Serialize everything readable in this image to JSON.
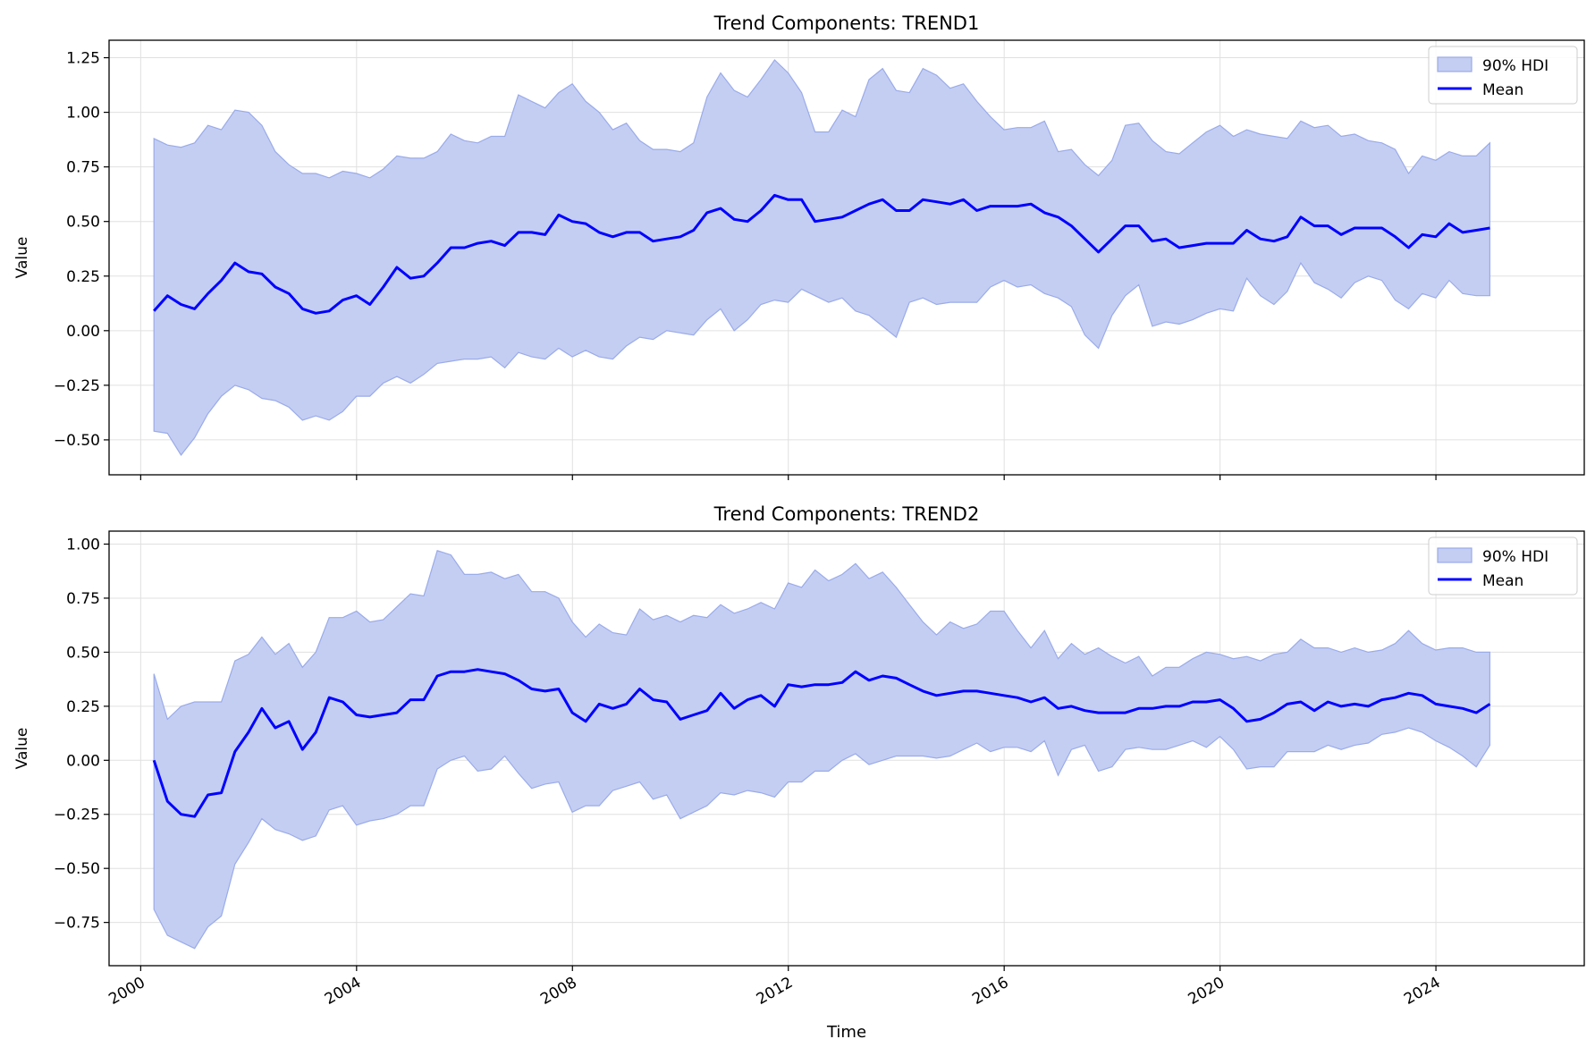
{
  "chart_data": [
    {
      "type": "area",
      "title": "Trend Components: TREND1",
      "xlabel": "",
      "ylabel": "Value",
      "xlim": [
        "1999-06-01",
        "2026-10-01"
      ],
      "ylim": [
        -0.66,
        1.33
      ],
      "x_ticks": [
        2000,
        2004,
        2008,
        2012,
        2016,
        2020,
        2024
      ],
      "y_ticks": [
        -0.5,
        -0.25,
        0.0,
        0.25,
        0.5,
        0.75,
        1.0,
        1.25
      ],
      "y_tick_labels": [
        "−0.50",
        "−0.25",
        "0.00",
        "0.25",
        "0.50",
        "0.75",
        "1.00",
        "1.25"
      ],
      "grid": true,
      "legend": {
        "position": "top-right",
        "items": [
          {
            "label": "90% HDI",
            "kind": "band"
          },
          {
            "label": "Mean",
            "kind": "line"
          }
        ]
      },
      "start_date": "2000-03-31",
      "frequency": "quarterly",
      "series": [
        {
          "name": "Mean",
          "values": [
            0.09,
            0.16,
            0.12,
            0.1,
            0.17,
            0.23,
            0.31,
            0.27,
            0.26,
            0.2,
            0.17,
            0.1,
            0.08,
            0.09,
            0.14,
            0.16,
            0.12,
            0.2,
            0.29,
            0.24,
            0.25,
            0.31,
            0.38,
            0.38,
            0.4,
            0.41,
            0.39,
            0.45,
            0.45,
            0.44,
            0.53,
            0.5,
            0.49,
            0.45,
            0.43,
            0.45,
            0.45,
            0.41,
            0.42,
            0.43,
            0.46,
            0.54,
            0.56,
            0.51,
            0.5,
            0.55,
            0.62,
            0.6,
            0.6,
            0.5,
            0.51,
            0.52,
            0.55,
            0.58,
            0.6,
            0.55,
            0.55,
            0.6,
            0.59,
            0.58,
            0.6,
            0.55,
            0.57,
            0.57,
            0.57,
            0.58,
            0.54,
            0.52,
            0.48,
            0.42,
            0.36,
            0.42,
            0.48,
            0.48,
            0.41,
            0.42,
            0.38,
            0.39,
            0.4,
            0.4,
            0.4,
            0.46,
            0.42,
            0.41,
            0.43,
            0.52,
            0.48,
            0.48,
            0.44,
            0.47,
            0.47,
            0.47,
            0.43,
            0.38,
            0.44,
            0.43,
            0.49,
            0.45,
            0.46,
            0.47
          ]
        },
        {
          "name": "90% HDI upper",
          "values": [
            0.88,
            0.85,
            0.84,
            0.86,
            0.94,
            0.92,
            1.01,
            1.0,
            0.94,
            0.82,
            0.76,
            0.72,
            0.72,
            0.7,
            0.73,
            0.72,
            0.7,
            0.74,
            0.8,
            0.79,
            0.79,
            0.82,
            0.9,
            0.87,
            0.86,
            0.89,
            0.89,
            1.08,
            1.05,
            1.02,
            1.09,
            1.13,
            1.05,
            1.0,
            0.92,
            0.95,
            0.87,
            0.83,
            0.83,
            0.82,
            0.86,
            1.07,
            1.18,
            1.1,
            1.07,
            1.15,
            1.24,
            1.18,
            1.09,
            0.91,
            0.91,
            1.01,
            0.98,
            1.15,
            1.2,
            1.1,
            1.09,
            1.2,
            1.17,
            1.11,
            1.13,
            1.05,
            0.98,
            0.92,
            0.93,
            0.93,
            0.96,
            0.82,
            0.83,
            0.76,
            0.71,
            0.78,
            0.94,
            0.95,
            0.87,
            0.82,
            0.81,
            0.86,
            0.91,
            0.94,
            0.89,
            0.92,
            0.9,
            0.89,
            0.88,
            0.96,
            0.93,
            0.94,
            0.89,
            0.9,
            0.87,
            0.86,
            0.83,
            0.72,
            0.8,
            0.78,
            0.82,
            0.8,
            0.8,
            0.86
          ]
        },
        {
          "name": "90% HDI lower",
          "values": [
            -0.46,
            -0.47,
            -0.57,
            -0.49,
            -0.38,
            -0.3,
            -0.25,
            -0.27,
            -0.31,
            -0.32,
            -0.35,
            -0.41,
            -0.39,
            -0.41,
            -0.37,
            -0.3,
            -0.3,
            -0.24,
            -0.21,
            -0.24,
            -0.2,
            -0.15,
            -0.14,
            -0.13,
            -0.13,
            -0.12,
            -0.17,
            -0.1,
            -0.12,
            -0.13,
            -0.08,
            -0.12,
            -0.09,
            -0.12,
            -0.13,
            -0.07,
            -0.03,
            -0.04,
            0.0,
            -0.01,
            -0.02,
            0.05,
            0.1,
            0.0,
            0.05,
            0.12,
            0.14,
            0.13,
            0.19,
            0.16,
            0.13,
            0.15,
            0.09,
            0.07,
            0.02,
            -0.03,
            0.13,
            0.15,
            0.12,
            0.13,
            0.13,
            0.13,
            0.2,
            0.23,
            0.2,
            0.21,
            0.17,
            0.15,
            0.11,
            -0.02,
            -0.08,
            0.07,
            0.16,
            0.21,
            0.02,
            0.04,
            0.03,
            0.05,
            0.08,
            0.1,
            0.09,
            0.24,
            0.16,
            0.12,
            0.18,
            0.31,
            0.22,
            0.19,
            0.15,
            0.22,
            0.25,
            0.23,
            0.14,
            0.1,
            0.17,
            0.15,
            0.23,
            0.17,
            0.16,
            0.16
          ]
        }
      ]
    },
    {
      "type": "area",
      "title": "Trend Components: TREND2",
      "xlabel": "Time",
      "ylabel": "Value",
      "xlim": [
        "1999-06-01",
        "2026-10-01"
      ],
      "ylim": [
        -0.95,
        1.06
      ],
      "x_ticks": [
        2000,
        2004,
        2008,
        2012,
        2016,
        2020,
        2024
      ],
      "y_ticks": [
        -0.75,
        -0.5,
        -0.25,
        0.0,
        0.25,
        0.5,
        0.75,
        1.0
      ],
      "y_tick_labels": [
        "−0.75",
        "−0.50",
        "−0.25",
        "0.00",
        "0.25",
        "0.50",
        "0.75",
        "1.00"
      ],
      "grid": true,
      "legend": {
        "position": "top-right",
        "items": [
          {
            "label": "90% HDI",
            "kind": "band"
          },
          {
            "label": "Mean",
            "kind": "line"
          }
        ]
      },
      "start_date": "2000-03-31",
      "frequency": "quarterly",
      "series": [
        {
          "name": "Mean",
          "values": [
            0.0,
            -0.19,
            -0.25,
            -0.26,
            -0.16,
            -0.15,
            0.04,
            0.13,
            0.24,
            0.15,
            0.18,
            0.05,
            0.13,
            0.29,
            0.27,
            0.21,
            0.2,
            0.21,
            0.22,
            0.28,
            0.28,
            0.39,
            0.41,
            0.41,
            0.42,
            0.41,
            0.4,
            0.37,
            0.33,
            0.32,
            0.33,
            0.22,
            0.18,
            0.26,
            0.24,
            0.26,
            0.33,
            0.28,
            0.27,
            0.19,
            0.21,
            0.23,
            0.31,
            0.24,
            0.28,
            0.3,
            0.25,
            0.35,
            0.34,
            0.35,
            0.35,
            0.36,
            0.41,
            0.37,
            0.39,
            0.38,
            0.35,
            0.32,
            0.3,
            0.31,
            0.32,
            0.32,
            0.31,
            0.3,
            0.29,
            0.27,
            0.29,
            0.24,
            0.25,
            0.23,
            0.22,
            0.22,
            0.22,
            0.24,
            0.24,
            0.25,
            0.25,
            0.27,
            0.27,
            0.28,
            0.24,
            0.18,
            0.19,
            0.22,
            0.26,
            0.27,
            0.23,
            0.27,
            0.25,
            0.26,
            0.25,
            0.28,
            0.29,
            0.31,
            0.3,
            0.26,
            0.25,
            0.24,
            0.22,
            0.26
          ]
        },
        {
          "name": "90% HDI upper",
          "values": [
            0.4,
            0.19,
            0.25,
            0.27,
            0.27,
            0.27,
            0.46,
            0.49,
            0.57,
            0.49,
            0.54,
            0.43,
            0.5,
            0.66,
            0.66,
            0.69,
            0.64,
            0.65,
            0.71,
            0.77,
            0.76,
            0.97,
            0.95,
            0.86,
            0.86,
            0.87,
            0.84,
            0.86,
            0.78,
            0.78,
            0.75,
            0.64,
            0.57,
            0.63,
            0.59,
            0.58,
            0.7,
            0.65,
            0.67,
            0.64,
            0.67,
            0.66,
            0.72,
            0.68,
            0.7,
            0.73,
            0.7,
            0.82,
            0.8,
            0.88,
            0.83,
            0.86,
            0.91,
            0.84,
            0.87,
            0.8,
            0.72,
            0.64,
            0.58,
            0.64,
            0.61,
            0.63,
            0.69,
            0.69,
            0.6,
            0.52,
            0.6,
            0.47,
            0.54,
            0.49,
            0.52,
            0.48,
            0.45,
            0.48,
            0.39,
            0.43,
            0.43,
            0.47,
            0.5,
            0.49,
            0.47,
            0.48,
            0.46,
            0.49,
            0.5,
            0.56,
            0.52,
            0.52,
            0.5,
            0.52,
            0.5,
            0.51,
            0.54,
            0.6,
            0.54,
            0.51,
            0.52,
            0.52,
            0.5,
            0.5
          ]
        },
        {
          "name": "90% HDI lower",
          "values": [
            -0.69,
            -0.81,
            -0.84,
            -0.87,
            -0.77,
            -0.72,
            -0.48,
            -0.38,
            -0.27,
            -0.32,
            -0.34,
            -0.37,
            -0.35,
            -0.23,
            -0.21,
            -0.3,
            -0.28,
            -0.27,
            -0.25,
            -0.21,
            -0.21,
            -0.04,
            0.0,
            0.02,
            -0.05,
            -0.04,
            0.02,
            -0.06,
            -0.13,
            -0.11,
            -0.1,
            -0.24,
            -0.21,
            -0.21,
            -0.14,
            -0.12,
            -0.1,
            -0.18,
            -0.16,
            -0.27,
            -0.24,
            -0.21,
            -0.15,
            -0.16,
            -0.14,
            -0.15,
            -0.17,
            -0.1,
            -0.1,
            -0.05,
            -0.05,
            0.0,
            0.03,
            -0.02,
            0.0,
            0.02,
            0.02,
            0.02,
            0.01,
            0.02,
            0.05,
            0.08,
            0.04,
            0.06,
            0.06,
            0.04,
            0.09,
            -0.07,
            0.05,
            0.07,
            -0.05,
            -0.03,
            0.05,
            0.06,
            0.05,
            0.05,
            0.07,
            0.09,
            0.06,
            0.11,
            0.05,
            -0.04,
            -0.03,
            -0.03,
            0.04,
            0.04,
            0.04,
            0.07,
            0.05,
            0.07,
            0.08,
            0.12,
            0.13,
            0.15,
            0.13,
            0.09,
            0.06,
            0.02,
            -0.03,
            0.07
          ]
        }
      ]
    }
  ],
  "colors": {
    "band_fill": "#c4cef3",
    "band_edge": "#9aabe9",
    "mean_line": "#0000ff",
    "grid": "#e0e0e0",
    "axes": "#000000"
  }
}
